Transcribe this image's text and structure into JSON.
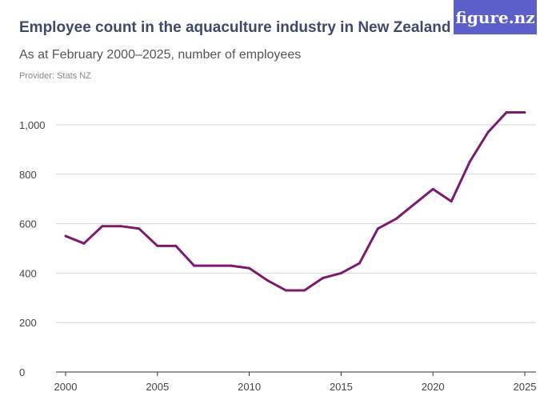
{
  "header": {
    "title": "Employee count in the aquaculture industry in New Zealand",
    "subtitle": "As at February 2000–2025, number of employees",
    "provider": "Provider: Stats NZ",
    "logo": "figure.nz"
  },
  "colors": {
    "line": "#7b1a6e",
    "logo_bg": "#5c5fc9",
    "grid": "#d6d6d6"
  },
  "chart_data": {
    "type": "line",
    "title": "Employee count in the aquaculture industry in New Zealand",
    "subtitle": "As at February 2000–2025, number of employees",
    "xlim": [
      2000,
      2025
    ],
    "ylim": [
      0,
      1000
    ],
    "grid": true,
    "x_ticks": [
      "2000",
      "2005",
      "2010",
      "2015",
      "2020",
      "2025"
    ],
    "y_ticks": [
      "0",
      "200",
      "400",
      "600",
      "800",
      "1,000"
    ],
    "x": [
      2000,
      2001,
      2002,
      2003,
      2004,
      2005,
      2006,
      2007,
      2008,
      2009,
      2010,
      2011,
      2012,
      2013,
      2014,
      2015,
      2016,
      2017,
      2018,
      2019,
      2020,
      2021,
      2022,
      2023,
      2024,
      2025
    ],
    "values": [
      550,
      520,
      590,
      590,
      580,
      510,
      510,
      430,
      430,
      430,
      420,
      370,
      330,
      330,
      380,
      400,
      440,
      580,
      620,
      680,
      740,
      690,
      850,
      970,
      1050,
      1050
    ]
  }
}
